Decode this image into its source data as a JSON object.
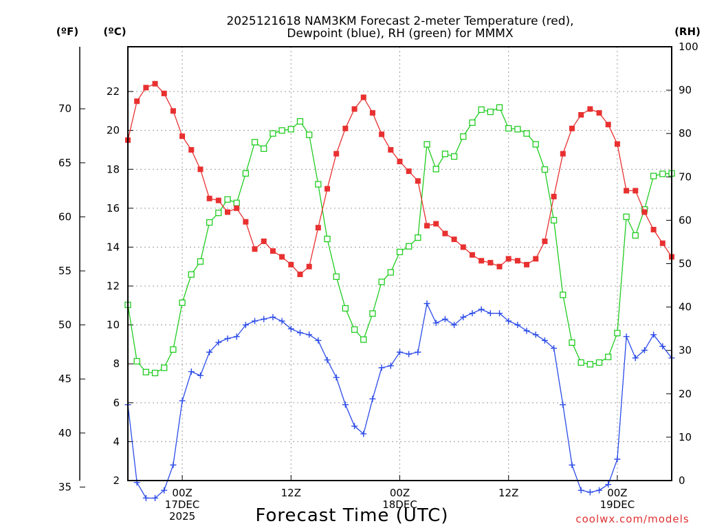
{
  "chart_data": {
    "type": "line",
    "title_line1": "2025121618 NAM3KM Forecast 2-meter Temperature (red),",
    "title_line2": "Dewpoint (blue), RH (green) for MMMX",
    "xlabel": "Forecast Time (UTC)",
    "credit": "coolwx.com/models",
    "units": {
      "fahrenheit": "(ºF)",
      "celsius": "(ºC)",
      "rh": "(RH)"
    },
    "xlim_hours": [
      0,
      60
    ],
    "ylim_celsius": [
      2.0,
      24.3
    ],
    "ylim_rh": [
      0,
      100
    ],
    "grid": true,
    "celsius_ticks": [
      "2",
      "4",
      "6",
      "8",
      "10",
      "12",
      "14",
      "16",
      "18",
      "20",
      "22"
    ],
    "fahrenheit_ticks": [
      "35",
      "40",
      "45",
      "50",
      "55",
      "60",
      "65",
      "70"
    ],
    "rh_ticks": [
      "0",
      "10",
      "20",
      "30",
      "40",
      "50",
      "60",
      "70",
      "80",
      "90",
      "100"
    ],
    "x_ticks": [
      {
        "hour": 6,
        "line1": "00Z",
        "line2": "17DEC",
        "line3": "2025"
      },
      {
        "hour": 18,
        "line1": "12Z",
        "line2": "",
        "line3": ""
      },
      {
        "hour": 30,
        "line1": "00Z",
        "line2": "18DEC",
        "line3": ""
      },
      {
        "hour": 42,
        "line1": "12Z",
        "line2": "",
        "line3": ""
      },
      {
        "hour": 54,
        "line1": "00Z",
        "line2": "19DEC",
        "line3": ""
      }
    ],
    "series": [
      {
        "name": "Temperature",
        "units": "C",
        "color": "#e83030",
        "marker": "filled-square",
        "values": [
          19.5,
          21.5,
          22.2,
          22.4,
          21.9,
          21.0,
          19.7,
          19.0,
          18.0,
          16.5,
          16.4,
          15.8,
          16.0,
          15.3,
          13.9,
          14.3,
          13.8,
          13.5,
          13.1,
          12.6,
          13.0,
          15.0,
          17.0,
          18.8,
          20.1,
          21.1,
          21.7,
          20.9,
          19.8,
          19.0,
          18.4,
          17.9,
          17.4,
          15.1,
          15.2,
          14.7,
          14.4,
          14.0,
          13.6,
          13.3,
          13.2,
          13.0,
          13.4,
          13.3,
          13.1,
          13.4,
          14.3,
          16.6,
          18.8,
          20.1,
          20.8,
          21.1,
          20.9,
          20.3,
          19.3,
          16.9,
          16.9,
          15.8,
          14.9,
          14.2,
          13.5
        ]
      },
      {
        "name": "Dewpoint",
        "units": "C",
        "color": "#2a4ae8",
        "marker": "plus",
        "values": [
          5.9,
          1.9,
          1.1,
          1.1,
          1.5,
          2.8,
          6.1,
          7.6,
          7.4,
          8.6,
          9.1,
          9.3,
          9.4,
          10.0,
          10.2,
          10.3,
          10.4,
          10.2,
          9.8,
          9.6,
          9.5,
          9.2,
          8.2,
          7.3,
          5.9,
          4.8,
          4.4,
          6.2,
          7.8,
          7.9,
          8.6,
          8.5,
          8.6,
          11.1,
          10.1,
          10.3,
          10.0,
          10.4,
          10.6,
          10.8,
          10.6,
          10.6,
          10.2,
          10.0,
          9.7,
          9.5,
          9.2,
          8.8,
          5.9,
          2.8,
          1.5,
          1.4,
          1.5,
          1.8,
          3.1,
          9.4,
          8.3,
          8.7,
          9.5,
          8.9,
          8.3
        ]
      },
      {
        "name": "RH",
        "units": "%",
        "color": "#20cc20",
        "marker": "open-square",
        "values": [
          40.5,
          27.5,
          25.0,
          24.8,
          26.0,
          30.2,
          41.0,
          47.5,
          50.5,
          59.5,
          61.7,
          64.8,
          64.0,
          70.8,
          78.0,
          76.5,
          80.0,
          80.7,
          81.0,
          82.8,
          79.7,
          68.3,
          55.7,
          47.0,
          39.7,
          34.8,
          32.5,
          38.5,
          45.8,
          48.0,
          52.7,
          54.0,
          56.0,
          77.5,
          71.8,
          75.3,
          74.7,
          79.3,
          82.5,
          85.5,
          85.0,
          86.0,
          81.2,
          81.0,
          80.0,
          77.5,
          71.7,
          60.0,
          42.8,
          31.8,
          27.2,
          26.8,
          27.2,
          28.5,
          34.0,
          60.8,
          56.5,
          62.5,
          70.2,
          70.7,
          70.8
        ]
      }
    ]
  }
}
